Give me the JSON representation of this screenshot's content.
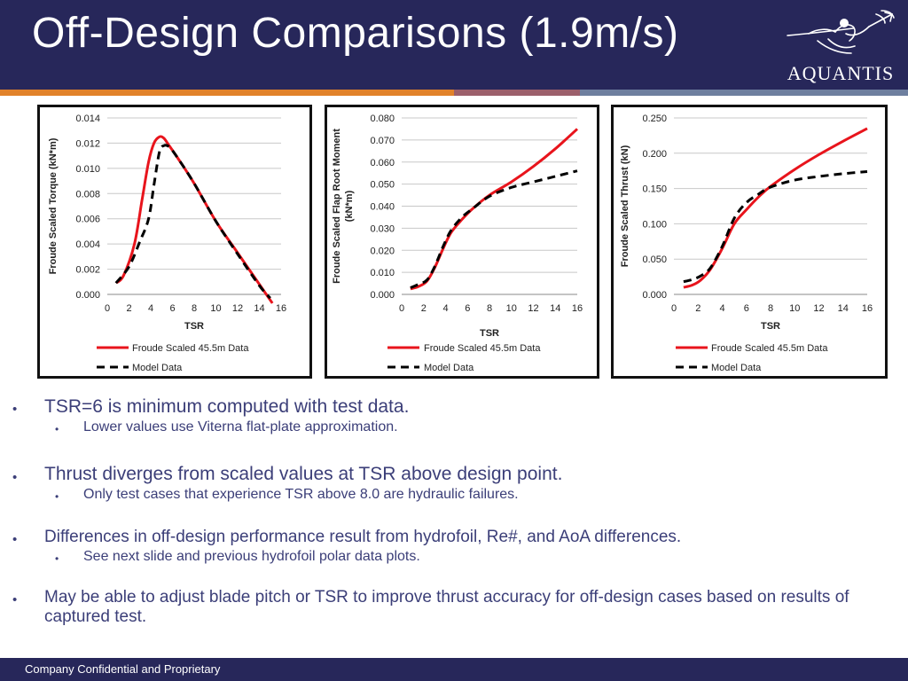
{
  "slide": {
    "title": "Off-Design Comparisons (1.9m/s)",
    "logo_text": "AQUANTIS",
    "footer": "Company Confidential and Proprietary"
  },
  "colors": {
    "header_bg": "#27275a",
    "test_line": "#e8141c",
    "model_line": "#000000",
    "text_accent": "#3b3e78"
  },
  "icons": {
    "logo": "trident-figure-icon"
  },
  "bullets": [
    {
      "text": "TSR=6 is minimum computed with test data.",
      "sub": "Lower values use Viterna flat-plate approximation."
    },
    {
      "text": "Thrust diverges from scaled values at TSR above design point.",
      "sub": "Only test cases that experience TSR above 8.0 are hydraulic failures."
    },
    {
      "text": "Differences in off-design performance result from hydrofoil, Re#, and AoA differences.",
      "sub": "See next slide and previous hydrofoil polar data plots."
    },
    {
      "text": "May be able to adjust blade pitch or TSR to improve thrust accuracy for off-design cases based on results of captured test.",
      "sub": ""
    }
  ],
  "chart_data": [
    {
      "type": "line",
      "xlabel": "TSR",
      "ylabel": "Froude Scaled Torque (kN*m)",
      "xlim": [
        0,
        16
      ],
      "ylim": [
        0,
        0.014
      ],
      "xticks": [
        "0",
        "2",
        "4",
        "6",
        "8",
        "10",
        "12",
        "14",
        "16"
      ],
      "yticks": [
        "0.000",
        "0.002",
        "0.004",
        "0.006",
        "0.008",
        "0.010",
        "0.012",
        "0.014"
      ],
      "grid": "horizontal",
      "legend": "bottom",
      "series": [
        {
          "name": "Froude Scaled 45.5m Data",
          "style": "solid",
          "color": "#e8141c",
          "x": [
            0.8,
            1.5,
            2.5,
            3.2,
            3.8,
            4.3,
            4.8,
            5.2,
            5.7,
            6.5,
            8,
            10,
            12,
            14,
            15.2
          ],
          "y": [
            0.0009,
            0.0015,
            0.004,
            0.0075,
            0.0105,
            0.012,
            0.0125,
            0.0124,
            0.0118,
            0.0108,
            0.0088,
            0.0058,
            0.0033,
            0.0008,
            -0.0007
          ]
        },
        {
          "name": "Model Data",
          "style": "dashed",
          "color": "#000000",
          "x": [
            0.8,
            2,
            3,
            3.8,
            4.3,
            4.8,
            5.2,
            5.7,
            6.5,
            8,
            10,
            12,
            14,
            15
          ],
          "y": [
            0.0009,
            0.0022,
            0.0042,
            0.006,
            0.0087,
            0.0113,
            0.0118,
            0.0117,
            0.0108,
            0.0088,
            0.0058,
            0.0032,
            0.0007,
            -0.0003
          ]
        }
      ]
    },
    {
      "type": "line",
      "xlabel": "TSR",
      "ylabel": "Froude Scaled Flap Root Moment (kN*m)",
      "xlim": [
        0,
        16
      ],
      "ylim": [
        0,
        0.08
      ],
      "xticks": [
        "0",
        "2",
        "4",
        "6",
        "8",
        "10",
        "12",
        "14",
        "16"
      ],
      "yticks": [
        "0.000",
        "0.010",
        "0.020",
        "0.030",
        "0.040",
        "0.050",
        "0.060",
        "0.070",
        "0.080"
      ],
      "grid": "horizontal",
      "legend": "bottom",
      "series": [
        {
          "name": "Froude Scaled 45.5m Data",
          "style": "solid",
          "color": "#e8141c",
          "x": [
            0.8,
            1.5,
            2.3,
            3,
            3.8,
            4.5,
            5.5,
            6.5,
            8,
            10,
            12,
            14,
            16
          ],
          "y": [
            0.0025,
            0.0035,
            0.006,
            0.012,
            0.021,
            0.028,
            0.034,
            0.039,
            0.045,
            0.051,
            0.058,
            0.066,
            0.075
          ]
        },
        {
          "name": "Model Data",
          "style": "dashed",
          "color": "#000000",
          "x": [
            0.8,
            1.5,
            2.3,
            3,
            3.8,
            4.5,
            5.5,
            6.5,
            8,
            10,
            12,
            14,
            16
          ],
          "y": [
            0.003,
            0.0045,
            0.0065,
            0.0125,
            0.022,
            0.029,
            0.035,
            0.039,
            0.0445,
            0.0485,
            0.051,
            0.0535,
            0.056
          ]
        }
      ]
    },
    {
      "type": "line",
      "xlabel": "TSR",
      "ylabel": "Froude Scaled Thrust (kN)",
      "xlim": [
        0,
        16
      ],
      "ylim": [
        0,
        0.25
      ],
      "xticks": [
        "0",
        "2",
        "4",
        "6",
        "8",
        "10",
        "12",
        "14",
        "16"
      ],
      "yticks": [
        "0.000",
        "0.050",
        "0.100",
        "0.150",
        "0.200",
        "0.250"
      ],
      "grid": "horizontal",
      "legend": "bottom",
      "series": [
        {
          "name": "Froude Scaled 45.5m Data",
          "style": "solid",
          "color": "#e8141c",
          "x": [
            0.8,
            1.5,
            2.2,
            3,
            4,
            5,
            6,
            7,
            8,
            10,
            12,
            14,
            16
          ],
          "y": [
            0.01,
            0.013,
            0.02,
            0.035,
            0.065,
            0.1,
            0.12,
            0.138,
            0.153,
            0.177,
            0.198,
            0.217,
            0.235
          ]
        },
        {
          "name": "Model Data",
          "style": "dashed",
          "color": "#000000",
          "x": [
            0.8,
            1.5,
            2.2,
            3,
            4,
            5,
            6,
            7,
            8,
            10,
            12,
            14,
            16
          ],
          "y": [
            0.018,
            0.021,
            0.026,
            0.037,
            0.068,
            0.108,
            0.13,
            0.142,
            0.152,
            0.162,
            0.167,
            0.171,
            0.174
          ]
        }
      ]
    }
  ]
}
